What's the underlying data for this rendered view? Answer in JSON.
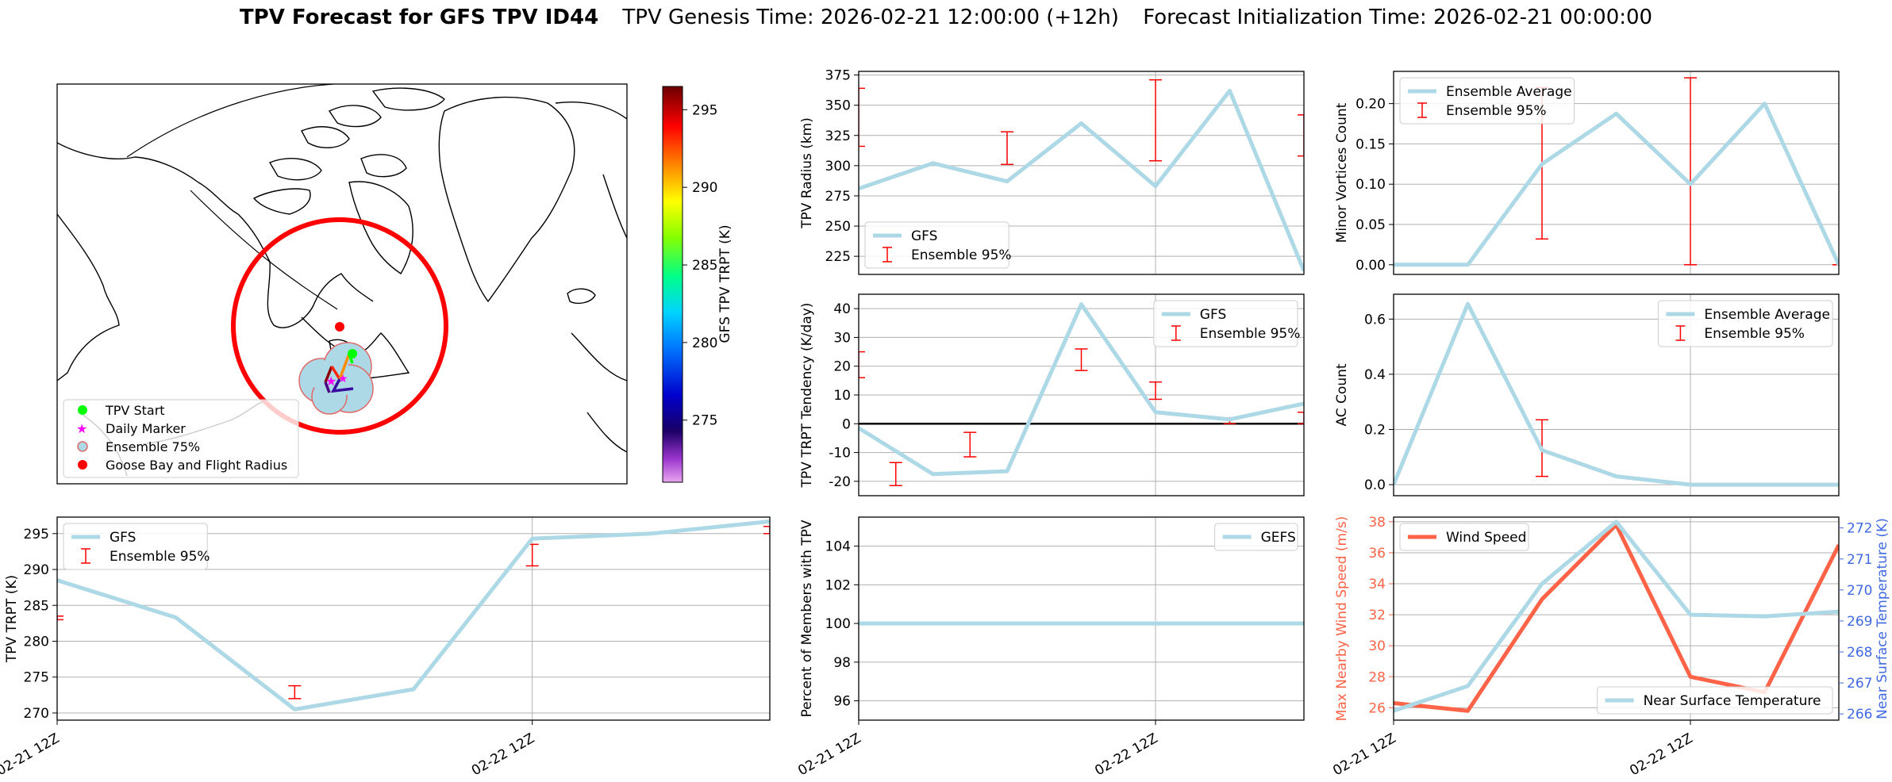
{
  "title": {
    "bold": "TPV Forecast for GFS TPV ID44",
    "genesis": "TPV Genesis Time: 2026-02-21 12:00:00 (+12h)",
    "init": "Forecast Initialization Time: 2026-02-21 00:00:00"
  },
  "colors": {
    "gfs": "#add8e6",
    "error": "#ff0000",
    "wind": "#ff6347",
    "temp_axis": "#4169e1",
    "grid": "#b0b0b0",
    "circle": "#ff0000"
  },
  "map": {
    "legend": [
      "TPV Start",
      "Daily Marker",
      "Ensemble 75%",
      "Goose Bay and Flight Radius"
    ],
    "colorbar_label": "GFS TPV TRPT (K)",
    "colorbar_ticks": [
      275,
      280,
      285,
      290,
      295
    ],
    "colorbar_range": [
      271,
      296.5
    ]
  },
  "chart_data": [
    {
      "id": "radius",
      "type": "line",
      "title": "",
      "xlabel": "",
      "ylabel": "TPV Radius (km)",
      "x": [
        0,
        1,
        2,
        3,
        4,
        5,
        6
      ],
      "xlim": [
        0,
        6
      ],
      "ylim": [
        210,
        378
      ],
      "yticks": [
        225,
        250,
        275,
        300,
        325,
        350,
        375
      ],
      "xticks": [],
      "series": [
        {
          "name": "GFS",
          "values": [
            281,
            302,
            287,
            335,
            283,
            362,
            213
          ]
        }
      ],
      "error_bars": {
        "name": "Ensemble 95%",
        "x": [
          0,
          2,
          4,
          6
        ],
        "low": [
          316,
          301,
          304,
          308
        ],
        "high": [
          364,
          328,
          371,
          342
        ]
      },
      "legend": [
        "GFS",
        "Ensemble 95%"
      ],
      "legend_loc": "lower-left",
      "grid": true
    },
    {
      "id": "minor",
      "type": "line",
      "ylabel": "Minor Vortices Count",
      "x": [
        0,
        1,
        2,
        3,
        4,
        5,
        6
      ],
      "xlim": [
        0,
        6
      ],
      "ylim": [
        -0.012,
        0.24
      ],
      "yticks": [
        0.0,
        0.05,
        0.1,
        0.15,
        0.2
      ],
      "ytick_labels": [
        "0.00",
        "0.05",
        "0.10",
        "0.15",
        "0.20"
      ],
      "xticks": [],
      "series": [
        {
          "name": "Ensemble Average",
          "values": [
            0,
            0,
            0.125,
            0.1875,
            0.1,
            0.2,
            0
          ]
        }
      ],
      "error_bars": {
        "name": "Ensemble 95%",
        "x": [
          0,
          2,
          4,
          6
        ],
        "low": [
          0,
          0.032,
          0,
          0
        ],
        "high": [
          0,
          0.22,
          0.232,
          0
        ]
      },
      "legend": [
        "Ensemble Average",
        "Ensemble 95%"
      ],
      "legend_loc": "upper-left",
      "grid": true
    },
    {
      "id": "tendency",
      "type": "line",
      "ylabel": "TPV TRPT Tendency (K/day)",
      "x": [
        0,
        1,
        2,
        3,
        4,
        5,
        6
      ],
      "xlim": [
        0,
        6
      ],
      "ylim": [
        -25,
        45
      ],
      "yticks": [
        -20,
        -10,
        0,
        10,
        20,
        30,
        40
      ],
      "xticks": [],
      "series": [
        {
          "name": "GFS",
          "values": [
            -1.5,
            -17.5,
            -16.5,
            41.5,
            4,
            1.5,
            7
          ]
        }
      ],
      "error_bars": {
        "name": "Ensemble 95%",
        "x": [
          0,
          0.5,
          1.5,
          3,
          4,
          5,
          6
        ],
        "low": [
          16,
          -21.5,
          -11.5,
          18.5,
          8.5,
          0,
          0
        ],
        "high": [
          25,
          -13.5,
          -3,
          26,
          14.5,
          2,
          4
        ]
      },
      "zero_line": true,
      "legend": [
        "GFS",
        "Ensemble 95%"
      ],
      "legend_loc": "upper-right",
      "grid": true
    },
    {
      "id": "ac",
      "type": "line",
      "ylabel": "AC Count",
      "x": [
        0,
        1,
        2,
        3,
        4,
        5,
        6
      ],
      "xlim": [
        0,
        6
      ],
      "ylim": [
        -0.04,
        0.69
      ],
      "yticks": [
        0.0,
        0.2,
        0.4,
        0.6
      ],
      "ytick_labels": [
        "0.0",
        "0.2",
        "0.4",
        "0.6"
      ],
      "xticks": [],
      "series": [
        {
          "name": "Ensemble Average",
          "values": [
            0,
            0.655,
            0.125,
            0.03,
            0,
            0,
            0
          ]
        }
      ],
      "error_bars": {
        "name": "Ensemble 95%",
        "x": [
          2,
          4
        ],
        "low": [
          0.03,
          0
        ],
        "high": [
          0.235,
          0
        ]
      },
      "legend": [
        "Ensemble Average",
        "Ensemble 95%"
      ],
      "legend_loc": "upper-right",
      "grid": true
    },
    {
      "id": "trpt",
      "type": "line",
      "ylabel": "TPV TRPT (K)",
      "x": [
        0,
        1,
        2,
        3,
        4,
        5,
        6
      ],
      "xlim": [
        0,
        6
      ],
      "ylim": [
        269,
        297.3
      ],
      "yticks": [
        270,
        275,
        280,
        285,
        290,
        295
      ],
      "xticks": [
        0,
        4
      ],
      "xtick_labels": [
        "02-21 12Z",
        "02-22 12Z"
      ],
      "series": [
        {
          "name": "GFS",
          "values": [
            288.5,
            283.3,
            270.5,
            273.3,
            294.3,
            295,
            296.7
          ]
        }
      ],
      "error_bars": {
        "name": "Ensemble 95%",
        "x": [
          0,
          2,
          4,
          6
        ],
        "low": [
          283,
          272,
          290.5,
          295
        ],
        "high": [
          283.5,
          273.8,
          293.5,
          296
        ]
      },
      "legend": [
        "GFS",
        "Ensemble 95%"
      ],
      "legend_loc": "upper-left",
      "grid": true
    },
    {
      "id": "percent",
      "type": "line",
      "ylabel": "Percent of Members with TPV",
      "x": [
        0,
        1,
        2,
        3,
        4,
        5,
        6
      ],
      "xlim": [
        0,
        6
      ],
      "ylim": [
        95,
        105.5
      ],
      "yticks": [
        96,
        98,
        100,
        102,
        104
      ],
      "xticks": [
        0,
        4
      ],
      "xtick_labels": [
        "02-21 12Z",
        "02-22 12Z"
      ],
      "series": [
        {
          "name": "GEFS",
          "values": [
            100,
            100,
            100,
            100,
            100,
            100,
            100
          ]
        }
      ],
      "legend": [
        "GEFS"
      ],
      "legend_loc": "upper-right",
      "grid": true
    },
    {
      "id": "wind",
      "type": "line",
      "ylabel": "Max Nearby Wind Speed (m/s)",
      "ylabel2": "Near Surface Temperature (K)",
      "x": [
        0,
        1,
        2,
        3,
        4,
        5,
        6
      ],
      "xlim": [
        0,
        6
      ],
      "ylim": [
        25.2,
        38.3
      ],
      "yticks": [
        26,
        28,
        30,
        32,
        34,
        36,
        38
      ],
      "ylim2": [
        265.8,
        272.35
      ],
      "yticks2": [
        266,
        267,
        268,
        269,
        270,
        271,
        272
      ],
      "xticks": [
        0,
        4
      ],
      "xtick_labels": [
        "02-21 12Z",
        "02-22 12Z"
      ],
      "series": [
        {
          "name": "Wind Speed",
          "axis": "left",
          "values": [
            26.3,
            25.8,
            33,
            37.8,
            28,
            27,
            36.5
          ]
        },
        {
          "name": "Near Surface Temperature",
          "axis": "right",
          "values": [
            266.1,
            266.9,
            270.2,
            272.2,
            269.2,
            269.15,
            269.3
          ]
        }
      ],
      "legend": [
        "Wind Speed",
        "Near Surface Temperature"
      ],
      "legend_loc": "upper-left / lower-right",
      "grid": true
    }
  ]
}
